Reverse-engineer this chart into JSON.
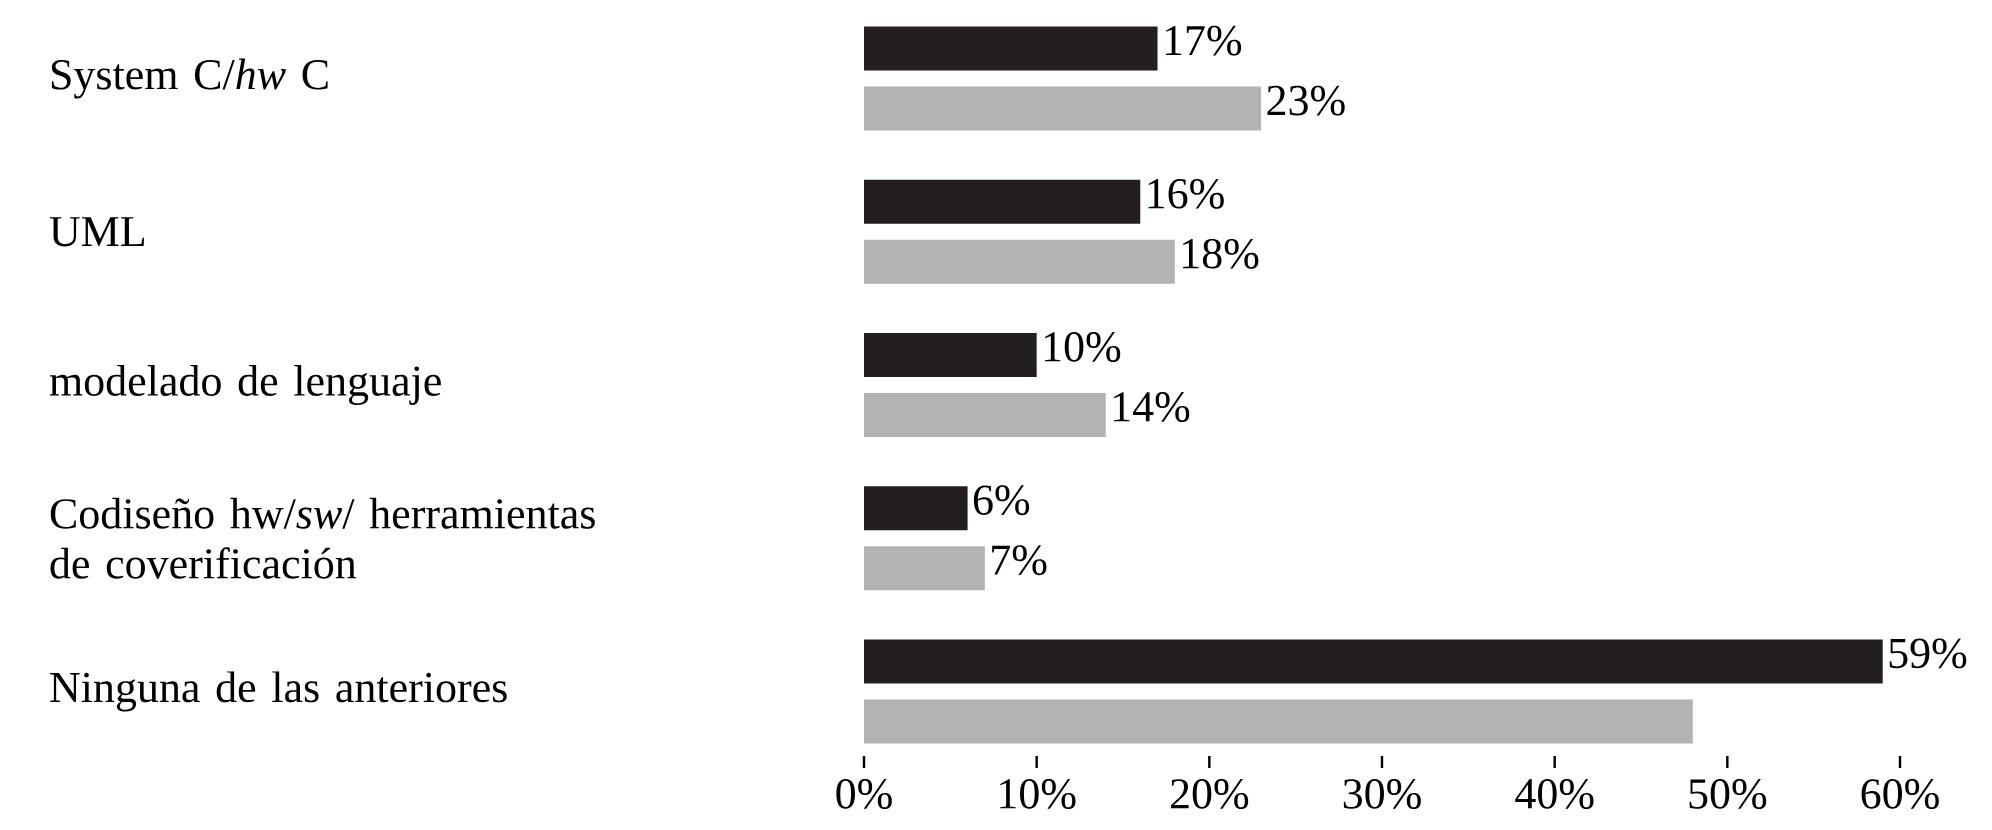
{
  "chart_data": {
    "type": "bar",
    "orientation": "horizontal",
    "categories": [
      "System C/*hw* C",
      "UML",
      "modelado de lenguaje",
      "Codiseño hw/*sw*/ herramientas de coverificación",
      "Ninguna de las anteriores"
    ],
    "series": [
      {
        "color": "#231f20",
        "values": [
          17,
          16,
          10,
          6,
          59
        ],
        "value_labels": [
          "17%",
          "16%",
          "10%",
          "6%",
          "59%"
        ]
      },
      {
        "color": "#b3b3b3",
        "values": [
          23,
          18,
          14,
          7,
          48
        ],
        "value_labels": [
          "23%",
          "18%",
          "14%",
          "7%",
          null
        ]
      }
    ],
    "xlim": [
      0,
      60
    ],
    "xticks": [
      {
        "value": 0,
        "label": "0%"
      },
      {
        "value": 10,
        "label": "10%"
      },
      {
        "value": 20,
        "label": "20%"
      },
      {
        "value": 30,
        "label": "30%"
      },
      {
        "value": 40,
        "label": "40%"
      },
      {
        "value": 50,
        "label": "50%"
      },
      {
        "value": 60,
        "label": "60%"
      }
    ]
  }
}
